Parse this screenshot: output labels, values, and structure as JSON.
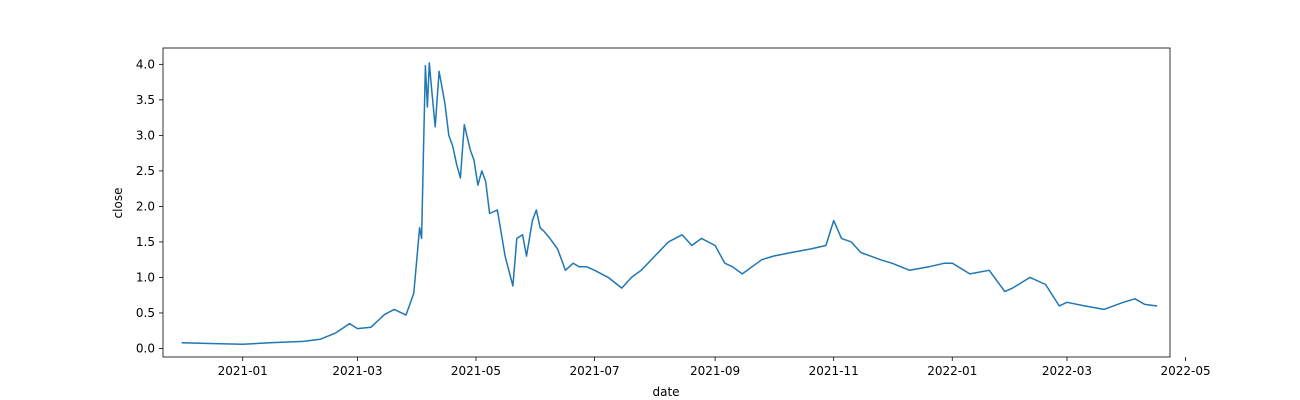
{
  "chart_data": {
    "type": "line",
    "title": "",
    "xlabel": "date",
    "ylabel": "close",
    "xlim": [
      "2020-11-21",
      "2022-04-23"
    ],
    "ylim": [
      -0.12,
      4.23
    ],
    "grid": false,
    "legend": "none",
    "line_color": "#1f77b4",
    "x_ticks": [
      "2021-01",
      "2021-03",
      "2021-05",
      "2021-07",
      "2021-09",
      "2021-11",
      "2022-01",
      "2022-03",
      "2022-05"
    ],
    "y_ticks": [
      "0.0",
      "0.5",
      "1.0",
      "1.5",
      "2.0",
      "2.5",
      "3.0",
      "3.5",
      "4.0"
    ],
    "series": [
      {
        "x": [
          "2020-12-01",
          "2020-12-15",
          "2021-01-01",
          "2021-01-15",
          "2021-02-01",
          "2021-02-10",
          "2021-02-18",
          "2021-02-25",
          "2021-03-01",
          "2021-03-08",
          "2021-03-15",
          "2021-03-20",
          "2021-03-26",
          "2021-03-30",
          "2021-04-02",
          "2021-04-03",
          "2021-04-04",
          "2021-04-05",
          "2021-04-06",
          "2021-04-07",
          "2021-04-08",
          "2021-04-10",
          "2021-04-12",
          "2021-04-15",
          "2021-04-17",
          "2021-04-19",
          "2021-04-21",
          "2021-04-23",
          "2021-04-25",
          "2021-04-28",
          "2021-04-30",
          "2021-05-02",
          "2021-05-04",
          "2021-05-06",
          "2021-05-08",
          "2021-05-12",
          "2021-05-16",
          "2021-05-20",
          "2021-05-22",
          "2021-05-25",
          "2021-05-27",
          "2021-05-30",
          "2021-06-01",
          "2021-06-03",
          "2021-06-05",
          "2021-06-08",
          "2021-06-12",
          "2021-06-16",
          "2021-06-20",
          "2021-06-23",
          "2021-06-27",
          "2021-07-01",
          "2021-07-08",
          "2021-07-15",
          "2021-07-20",
          "2021-07-25",
          "2021-08-01",
          "2021-08-08",
          "2021-08-15",
          "2021-08-20",
          "2021-08-25",
          "2021-09-01",
          "2021-09-06",
          "2021-09-10",
          "2021-09-15",
          "2021-09-20",
          "2021-09-25",
          "2021-10-01",
          "2021-10-10",
          "2021-10-20",
          "2021-10-28",
          "2021-11-01",
          "2021-11-05",
          "2021-11-10",
          "2021-11-15",
          "2021-11-20",
          "2021-11-25",
          "2021-12-01",
          "2021-12-10",
          "2021-12-20",
          "2021-12-28",
          "2022-01-01",
          "2022-01-10",
          "2022-01-20",
          "2022-01-28",
          "2022-02-01",
          "2022-02-10",
          "2022-02-18",
          "2022-02-25",
          "2022-03-01",
          "2022-03-10",
          "2022-03-20",
          "2022-03-30",
          "2022-04-05",
          "2022-04-10",
          "2022-04-16"
        ],
        "y": [
          0.08,
          0.07,
          0.06,
          0.08,
          0.1,
          0.13,
          0.22,
          0.35,
          0.28,
          0.3,
          0.48,
          0.55,
          0.47,
          0.78,
          1.7,
          1.55,
          2.8,
          3.98,
          3.4,
          4.02,
          3.7,
          3.12,
          3.9,
          3.45,
          3.0,
          2.85,
          2.6,
          2.4,
          3.15,
          2.8,
          2.65,
          2.3,
          2.5,
          2.35,
          1.9,
          1.95,
          1.3,
          0.88,
          1.55,
          1.6,
          1.3,
          1.8,
          1.95,
          1.7,
          1.65,
          1.55,
          1.4,
          1.1,
          1.2,
          1.15,
          1.15,
          1.1,
          1.0,
          0.85,
          1.0,
          1.1,
          1.3,
          1.5,
          1.6,
          1.45,
          1.55,
          1.45,
          1.2,
          1.15,
          1.05,
          1.15,
          1.25,
          1.3,
          1.35,
          1.4,
          1.45,
          1.8,
          1.55,
          1.5,
          1.35,
          1.3,
          1.25,
          1.2,
          1.1,
          1.15,
          1.2,
          1.2,
          1.05,
          1.1,
          0.8,
          0.85,
          1.0,
          0.9,
          0.6,
          0.65,
          0.6,
          0.55,
          0.65,
          0.7,
          0.62,
          0.6
        ]
      }
    ]
  }
}
